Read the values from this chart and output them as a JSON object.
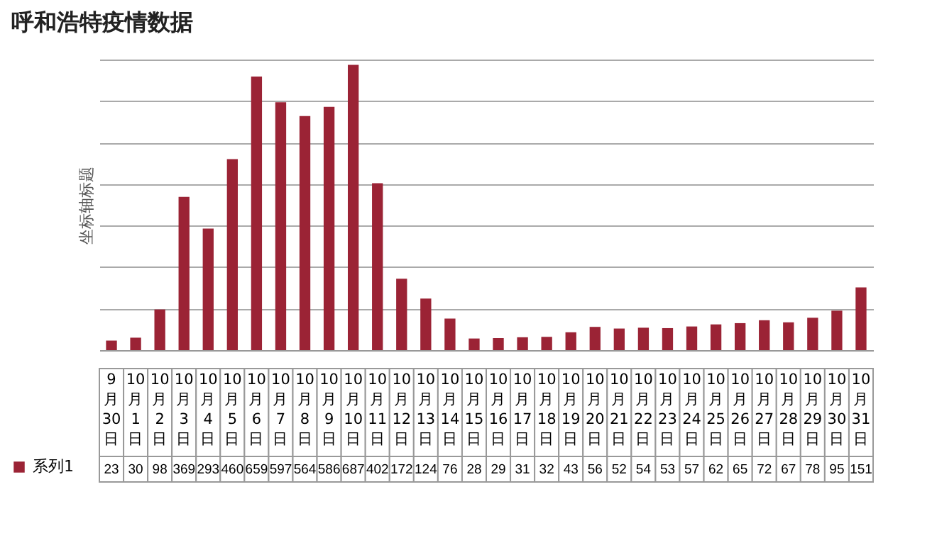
{
  "chart_data": {
    "type": "bar",
    "title": "呼和浩特疫情数据",
    "ylabel": "坐标轴标题",
    "categories": [
      "9月30日",
      "10月1日",
      "10月2日",
      "10月3日",
      "10月4日",
      "10月5日",
      "10月6日",
      "10月7日",
      "10月8日",
      "10月9日",
      "10月10日",
      "10月11日",
      "10月12日",
      "10月13日",
      "10月14日",
      "10月15日",
      "10月16日",
      "10月17日",
      "10月18日",
      "10月19日",
      "10月20日",
      "10月21日",
      "10月22日",
      "10月23日",
      "10月24日",
      "10月25日",
      "10月26日",
      "10月27日",
      "10月28日",
      "10月29日",
      "10月30日",
      "10月31日"
    ],
    "series": [
      {
        "name": "系列1",
        "color": "#9b2335",
        "values": [
          23,
          30,
          98,
          369,
          293,
          460,
          659,
          597,
          564,
          586,
          687,
          402,
          172,
          124,
          76,
          28,
          29,
          31,
          32,
          43,
          56,
          52,
          54,
          53,
          57,
          62,
          65,
          72,
          67,
          78,
          95,
          151
        ]
      }
    ],
    "grid": true,
    "legend": "bottom left",
    "data_labels": true
  }
}
